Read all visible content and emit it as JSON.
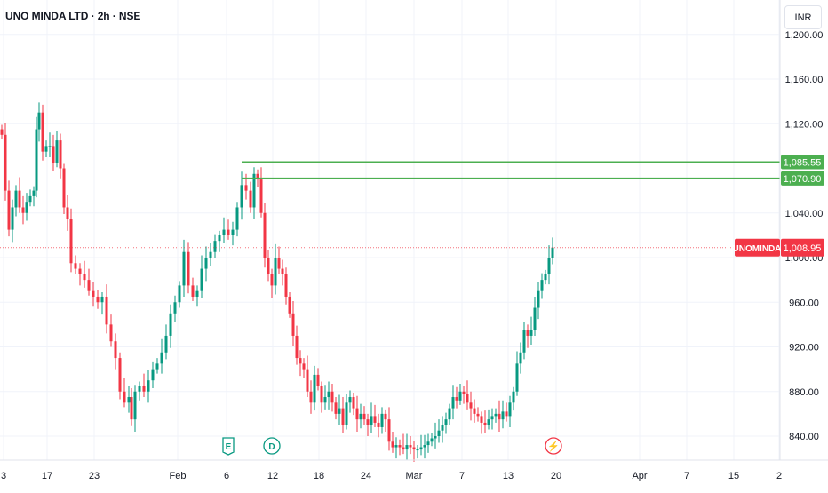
{
  "header": {
    "title": "UNO MINDA LTD · 2h · NSE",
    "currency": "INR"
  },
  "chart_data": {
    "type": "candlestick",
    "price_scale": {
      "ticks": [
        840,
        880,
        920,
        960,
        1000,
        1040,
        1120,
        1160,
        1200
      ],
      "tick_labels": [
        "840.00",
        "880.00",
        "920.00",
        "960.00",
        "1,000.00",
        "1,040.00",
        "1,120.00",
        "1,160.00",
        "1,200.00"
      ]
    },
    "time_labels": [
      "3",
      "17",
      "23",
      "Feb",
      "6",
      "12",
      "18",
      "24",
      "Mar",
      "7",
      "13",
      "20",
      "Apr",
      "7",
      "15",
      "2"
    ],
    "last_price": {
      "symbol": "UNOMINDA",
      "value": 1008.95,
      "label": "1,008.95",
      "color": "#f23645"
    },
    "horizontal_lines": [
      {
        "value": 1085.55,
        "label": "1,085.55",
        "color": "#4caf50"
      },
      {
        "value": 1070.9,
        "label": "1,070.90",
        "color": "#4caf50"
      }
    ],
    "events": [
      {
        "letter": "E",
        "type": "earnings",
        "color": "#089981"
      },
      {
        "letter": "D",
        "type": "dividend",
        "color": "#089981"
      },
      {
        "letter": "⚡",
        "type": "split",
        "color": "#f23645"
      }
    ],
    "colors": {
      "up": "#089981",
      "down": "#f23645",
      "grid": "#f0f3fa"
    },
    "anchors": [
      {
        "x": 2,
        "p": 1110
      },
      {
        "x": 6,
        "p": 1060
      },
      {
        "x": 10,
        "p": 1025
      },
      {
        "x": 14,
        "p": 1045
      },
      {
        "x": 18,
        "p": 1060
      },
      {
        "x": 22,
        "p": 1045
      },
      {
        "x": 26,
        "p": 1040
      },
      {
        "x": 30,
        "p": 1050
      },
      {
        "x": 34,
        "p": 1055
      },
      {
        "x": 38,
        "p": 1060
      },
      {
        "x": 41,
        "p": 1115
      },
      {
        "x": 44,
        "p": 1130
      },
      {
        "x": 48,
        "p": 1095
      },
      {
        "x": 52,
        "p": 1100
      },
      {
        "x": 56,
        "p": 1100
      },
      {
        "x": 60,
        "p": 1085
      },
      {
        "x": 64,
        "p": 1105
      },
      {
        "x": 68,
        "p": 1080
      },
      {
        "x": 72,
        "p": 1045
      },
      {
        "x": 76,
        "p": 1035
      },
      {
        "x": 80,
        "p": 995
      },
      {
        "x": 85,
        "p": 990
      },
      {
        "x": 90,
        "p": 985
      },
      {
        "x": 95,
        "p": 980
      },
      {
        "x": 100,
        "p": 970
      },
      {
        "x": 105,
        "p": 965
      },
      {
        "x": 110,
        "p": 960
      },
      {
        "x": 115,
        "p": 965
      },
      {
        "x": 120,
        "p": 940
      },
      {
        "x": 125,
        "p": 925
      },
      {
        "x": 130,
        "p": 910
      },
      {
        "x": 135,
        "p": 880
      },
      {
        "x": 140,
        "p": 870
      },
      {
        "x": 145,
        "p": 875
      },
      {
        "x": 148,
        "p": 855
      },
      {
        "x": 152,
        "p": 880
      },
      {
        "x": 157,
        "p": 885
      },
      {
        "x": 162,
        "p": 880
      },
      {
        "x": 167,
        "p": 890
      },
      {
        "x": 172,
        "p": 900
      },
      {
        "x": 177,
        "p": 905
      },
      {
        "x": 182,
        "p": 915
      },
      {
        "x": 187,
        "p": 930
      },
      {
        "x": 192,
        "p": 950
      },
      {
        "x": 197,
        "p": 960
      },
      {
        "x": 202,
        "p": 975
      },
      {
        "x": 207,
        "p": 1005
      },
      {
        "x": 212,
        "p": 975
      },
      {
        "x": 217,
        "p": 965
      },
      {
        "x": 222,
        "p": 970
      },
      {
        "x": 227,
        "p": 990
      },
      {
        "x": 232,
        "p": 1000
      },
      {
        "x": 237,
        "p": 1005
      },
      {
        "x": 242,
        "p": 1015
      },
      {
        "x": 247,
        "p": 1020
      },
      {
        "x": 252,
        "p": 1025
      },
      {
        "x": 257,
        "p": 1020
      },
      {
        "x": 262,
        "p": 1025
      },
      {
        "x": 267,
        "p": 1045
      },
      {
        "x": 272,
        "p": 1065
      },
      {
        "x": 277,
        "p": 1060
      },
      {
        "x": 282,
        "p": 1045
      },
      {
        "x": 286,
        "p": 1075
      },
      {
        "x": 290,
        "p": 1070
      },
      {
        "x": 294,
        "p": 1040
      },
      {
        "x": 298,
        "p": 1000
      },
      {
        "x": 302,
        "p": 985
      },
      {
        "x": 306,
        "p": 975
      },
      {
        "x": 310,
        "p": 1000
      },
      {
        "x": 314,
        "p": 990
      },
      {
        "x": 318,
        "p": 985
      },
      {
        "x": 322,
        "p": 965
      },
      {
        "x": 326,
        "p": 950
      },
      {
        "x": 330,
        "p": 930
      },
      {
        "x": 334,
        "p": 910
      },
      {
        "x": 338,
        "p": 905
      },
      {
        "x": 342,
        "p": 900
      },
      {
        "x": 346,
        "p": 880
      },
      {
        "x": 350,
        "p": 870
      },
      {
        "x": 354,
        "p": 895
      },
      {
        "x": 358,
        "p": 885
      },
      {
        "x": 362,
        "p": 870
      },
      {
        "x": 366,
        "p": 875
      },
      {
        "x": 370,
        "p": 880
      },
      {
        "x": 374,
        "p": 870
      },
      {
        "x": 378,
        "p": 860
      },
      {
        "x": 382,
        "p": 865
      },
      {
        "x": 386,
        "p": 850
      },
      {
        "x": 390,
        "p": 870
      },
      {
        "x": 394,
        "p": 875
      },
      {
        "x": 398,
        "p": 865
      },
      {
        "x": 402,
        "p": 855
      },
      {
        "x": 406,
        "p": 860
      },
      {
        "x": 410,
        "p": 855
      },
      {
        "x": 414,
        "p": 850
      },
      {
        "x": 418,
        "p": 858
      },
      {
        "x": 422,
        "p": 852
      },
      {
        "x": 426,
        "p": 848
      },
      {
        "x": 430,
        "p": 860
      },
      {
        "x": 434,
        "p": 855
      },
      {
        "x": 438,
        "p": 835
      },
      {
        "x": 442,
        "p": 830
      },
      {
        "x": 446,
        "p": 832
      },
      {
        "x": 450,
        "p": 830
      },
      {
        "x": 454,
        "p": 828
      },
      {
        "x": 458,
        "p": 832
      },
      {
        "x": 462,
        "p": 830
      },
      {
        "x": 466,
        "p": 828
      },
      {
        "x": 470,
        "p": 828
      },
      {
        "x": 474,
        "p": 830
      },
      {
        "x": 478,
        "p": 832
      },
      {
        "x": 482,
        "p": 835
      },
      {
        "x": 486,
        "p": 838
      },
      {
        "x": 490,
        "p": 840
      },
      {
        "x": 494,
        "p": 845
      },
      {
        "x": 498,
        "p": 850
      },
      {
        "x": 502,
        "p": 855
      },
      {
        "x": 506,
        "p": 865
      },
      {
        "x": 510,
        "p": 875
      },
      {
        "x": 514,
        "p": 872
      },
      {
        "x": 518,
        "p": 880
      },
      {
        "x": 522,
        "p": 878
      },
      {
        "x": 526,
        "p": 870
      },
      {
        "x": 530,
        "p": 865
      },
      {
        "x": 534,
        "p": 860
      },
      {
        "x": 538,
        "p": 858
      },
      {
        "x": 542,
        "p": 852
      },
      {
        "x": 546,
        "p": 850
      },
      {
        "x": 550,
        "p": 855
      },
      {
        "x": 554,
        "p": 858
      },
      {
        "x": 558,
        "p": 860
      },
      {
        "x": 562,
        "p": 855
      },
      {
        "x": 566,
        "p": 862
      },
      {
        "x": 570,
        "p": 858
      },
      {
        "x": 574,
        "p": 870
      },
      {
        "x": 578,
        "p": 880
      },
      {
        "x": 582,
        "p": 905
      },
      {
        "x": 586,
        "p": 915
      },
      {
        "x": 590,
        "p": 935
      },
      {
        "x": 594,
        "p": 930
      },
      {
        "x": 598,
        "p": 935
      },
      {
        "x": 602,
        "p": 955
      },
      {
        "x": 606,
        "p": 970
      },
      {
        "x": 610,
        "p": 980
      },
      {
        "x": 614,
        "p": 985
      },
      {
        "x": 618,
        "p": 1000
      },
      {
        "x": 622,
        "p": 1009
      }
    ]
  }
}
